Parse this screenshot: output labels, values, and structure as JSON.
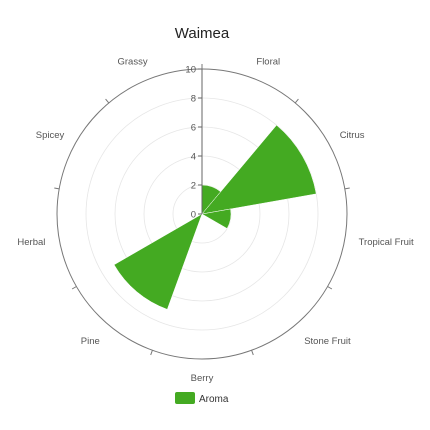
{
  "chart_data": {
    "type": "polar-bar",
    "title": "Waimea",
    "categories": [
      "Floral",
      "Citrus",
      "Tropical Fruit",
      "Stone Fruit",
      "Berry",
      "Pine",
      "Herbal",
      "Spicey",
      "Grassy"
    ],
    "series": [
      {
        "name": "Aroma",
        "color": "#44aa22",
        "values": [
          2,
          8,
          2,
          0,
          0,
          7,
          0,
          0,
          0
        ]
      }
    ],
    "rlim": [
      0,
      10
    ],
    "rticks": [
      "0",
      "2",
      "4",
      "6",
      "8",
      "10"
    ],
    "grid": true,
    "legend_position": "bottom"
  }
}
